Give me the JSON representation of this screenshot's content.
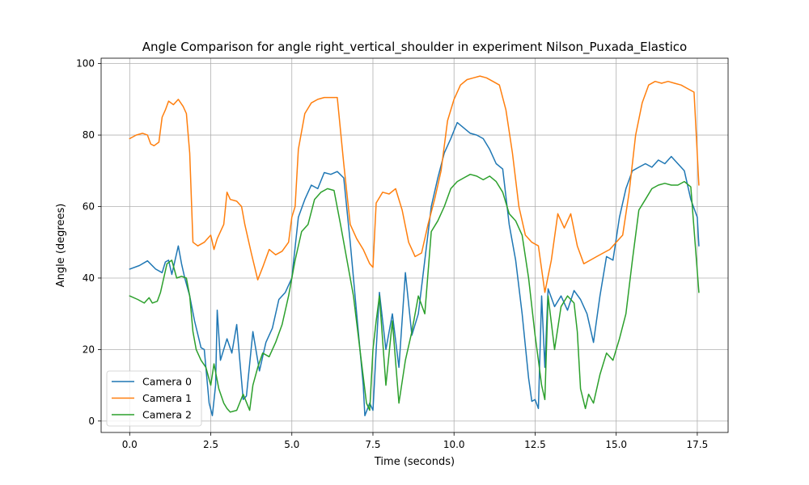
{
  "chart_data": {
    "type": "line",
    "title": "Angle Comparison for angle right_vertical_shoulder in experiment Nilson_Puxada_Elastico",
    "xlabel": "Time (seconds)",
    "ylabel": "Angle (degrees)",
    "xlim": [
      -0.88,
      18.45
    ],
    "ylim": [
      -3.2,
      101.5
    ],
    "xticks": [
      0,
      2.5,
      5,
      7.5,
      10,
      12.5,
      15,
      17.5
    ],
    "xtick_labels": [
      "0.0",
      "2.5",
      "5.0",
      "7.5",
      "10.0",
      "12.5",
      "15.0",
      "17.5"
    ],
    "yticks": [
      0,
      20,
      40,
      60,
      80,
      100
    ],
    "ytick_labels": [
      "0",
      "20",
      "40",
      "60",
      "80",
      "100"
    ],
    "grid": true,
    "legend_position": "lower-left",
    "series": [
      {
        "name": "Camera 0",
        "color": "#1f77b4",
        "x": [
          0.0,
          0.3,
          0.55,
          0.8,
          1.0,
          1.1,
          1.2,
          1.3,
          1.5,
          1.6,
          1.7,
          1.85,
          2.0,
          2.2,
          2.3,
          2.45,
          2.55,
          2.65,
          2.7,
          2.8,
          3.0,
          3.15,
          3.3,
          3.5,
          3.6,
          3.8,
          4.0,
          4.2,
          4.4,
          4.6,
          4.8,
          5.0,
          5.2,
          5.4,
          5.6,
          5.8,
          6.0,
          6.2,
          6.4,
          6.6,
          6.8,
          7.0,
          7.2,
          7.25,
          7.4,
          7.5,
          7.6,
          7.7,
          7.9,
          8.1,
          8.3,
          8.5,
          8.7,
          8.9,
          9.1,
          9.3,
          9.5,
          9.7,
          9.9,
          10.1,
          10.3,
          10.5,
          10.7,
          10.9,
          11.1,
          11.3,
          11.5,
          11.7,
          11.9,
          12.1,
          12.3,
          12.4,
          12.5,
          12.6,
          12.7,
          12.8,
          12.9,
          13.1,
          13.3,
          13.5,
          13.7,
          13.9,
          14.1,
          14.3,
          14.5,
          14.7,
          14.9,
          15.1,
          15.3,
          15.5,
          15.7,
          15.9,
          16.1,
          16.3,
          16.5,
          16.7,
          16.9,
          17.1,
          17.3,
          17.5,
          17.55
        ],
        "values": [
          42.5,
          43.5,
          44.8,
          42.5,
          41.5,
          44.5,
          45.0,
          41.0,
          49.0,
          44.0,
          40.0,
          35.0,
          28.0,
          20.5,
          20.0,
          5.0,
          1.5,
          10.0,
          31.0,
          17.0,
          23.0,
          19.0,
          27.0,
          6.0,
          7.0,
          25.0,
          14.0,
          22.0,
          26.0,
          34.0,
          36.0,
          40.0,
          57.0,
          62.0,
          66.0,
          65.0,
          69.5,
          69.0,
          69.8,
          68.0,
          50.0,
          30.0,
          10.0,
          1.5,
          5.0,
          3.0,
          20.0,
          36.0,
          20.0,
          30.0,
          15.0,
          41.5,
          24.0,
          30.0,
          45.0,
          60.0,
          68.0,
          75.0,
          79.0,
          83.5,
          82.0,
          80.5,
          80.0,
          79.0,
          76.0,
          72.0,
          70.5,
          55.0,
          45.0,
          30.0,
          12.0,
          5.5,
          6.0,
          3.5,
          35.0,
          15.0,
          37.0,
          32.0,
          35.0,
          31.0,
          36.5,
          34.0,
          30.0,
          22.0,
          35.0,
          46.0,
          45.0,
          57.0,
          65.0,
          70.0,
          71.0,
          72.0,
          71.0,
          73.0,
          72.0,
          74.0,
          72.0,
          70.0,
          62.0,
          57.0,
          49.0
        ]
      },
      {
        "name": "Camera 1",
        "color": "#ff7f0e",
        "x": [
          0.0,
          0.2,
          0.4,
          0.55,
          0.65,
          0.75,
          0.9,
          1.0,
          1.1,
          1.2,
          1.35,
          1.5,
          1.65,
          1.75,
          1.85,
          1.95,
          2.1,
          2.3,
          2.5,
          2.6,
          2.7,
          2.9,
          3.0,
          3.1,
          3.3,
          3.45,
          3.55,
          3.75,
          3.95,
          4.1,
          4.3,
          4.5,
          4.7,
          4.9,
          5.0,
          5.1,
          5.2,
          5.4,
          5.6,
          5.8,
          6.0,
          6.2,
          6.4,
          6.6,
          6.8,
          7.0,
          7.2,
          7.4,
          7.5,
          7.6,
          7.8,
          8.0,
          8.2,
          8.4,
          8.6,
          8.8,
          9.0,
          9.2,
          9.4,
          9.6,
          9.8,
          10.0,
          10.2,
          10.4,
          10.6,
          10.8,
          11.0,
          11.2,
          11.4,
          11.6,
          11.8,
          12.0,
          12.2,
          12.4,
          12.6,
          12.8,
          13.0,
          13.2,
          13.4,
          13.6,
          13.8,
          14.0,
          14.2,
          14.4,
          14.6,
          14.8,
          15.0,
          15.2,
          15.4,
          15.6,
          15.8,
          16.0,
          16.2,
          16.4,
          16.6,
          16.8,
          17.0,
          17.2,
          17.4,
          17.55
        ],
        "values": [
          79.0,
          80.0,
          80.5,
          80.0,
          77.5,
          77.0,
          78.0,
          85.0,
          87.0,
          89.5,
          88.5,
          90.0,
          88.0,
          86.0,
          75.0,
          50.0,
          49.0,
          50.0,
          52.0,
          48.0,
          51.0,
          55.0,
          64.0,
          62.0,
          61.5,
          60.0,
          55.0,
          47.0,
          39.5,
          43.0,
          48.0,
          46.5,
          47.5,
          50.0,
          57.0,
          60.0,
          76.0,
          86.0,
          89.0,
          90.0,
          90.5,
          90.5,
          90.5,
          72.0,
          55.0,
          51.0,
          48.0,
          44.0,
          43.0,
          61.0,
          64.0,
          63.5,
          65.0,
          59.0,
          50.0,
          46.0,
          47.0,
          55.0,
          62.0,
          70.0,
          84.0,
          90.0,
          94.0,
          95.5,
          96.0,
          96.5,
          96.0,
          95.0,
          94.0,
          87.0,
          75.0,
          60.0,
          52.0,
          50.0,
          49.0,
          36.0,
          45.0,
          58.0,
          54.0,
          58.0,
          49.0,
          44.0,
          45.0,
          46.0,
          47.0,
          48.0,
          50.0,
          52.0,
          64.0,
          80.0,
          89.0,
          94.0,
          95.0,
          94.5,
          95.0,
          94.5,
          94.0,
          93.0,
          92.0,
          66.0
        ]
      },
      {
        "name": "Camera 2",
        "color": "#2ca02c",
        "x": [
          0.0,
          0.25,
          0.45,
          0.6,
          0.7,
          0.85,
          0.95,
          1.05,
          1.15,
          1.3,
          1.45,
          1.6,
          1.75,
          1.85,
          1.95,
          2.05,
          2.2,
          2.35,
          2.5,
          2.6,
          2.75,
          2.9,
          3.0,
          3.1,
          3.3,
          3.5,
          3.7,
          3.8,
          3.95,
          4.1,
          4.3,
          4.5,
          4.7,
          4.9,
          5.1,
          5.3,
          5.5,
          5.7,
          5.9,
          6.1,
          6.3,
          6.5,
          6.7,
          6.9,
          7.1,
          7.3,
          7.4,
          7.5,
          7.6,
          7.7,
          7.9,
          8.1,
          8.3,
          8.5,
          8.7,
          8.9,
          9.1,
          9.3,
          9.5,
          9.7,
          9.9,
          10.1,
          10.3,
          10.5,
          10.7,
          10.9,
          11.1,
          11.3,
          11.5,
          11.7,
          11.9,
          12.1,
          12.3,
          12.5,
          12.6,
          12.7,
          12.8,
          12.9,
          13.1,
          13.3,
          13.5,
          13.7,
          13.8,
          13.9,
          14.05,
          14.15,
          14.3,
          14.5,
          14.7,
          14.9,
          15.1,
          15.3,
          15.5,
          15.7,
          15.9,
          16.1,
          16.3,
          16.5,
          16.7,
          16.9,
          17.1,
          17.3,
          17.55
        ],
        "values": [
          35.0,
          34.0,
          33.0,
          34.5,
          33.0,
          33.5,
          36.0,
          40.0,
          44.0,
          45.0,
          40.0,
          40.5,
          40.0,
          35.0,
          25.0,
          20.0,
          17.0,
          15.0,
          10.0,
          16.0,
          9.0,
          5.0,
          3.5,
          2.5,
          3.0,
          7.5,
          3.0,
          10.0,
          15.0,
          19.0,
          18.0,
          22.0,
          27.0,
          35.0,
          45.0,
          53.0,
          55.0,
          62.0,
          64.0,
          65.0,
          64.5,
          55.0,
          45.0,
          35.0,
          20.0,
          5.0,
          3.0,
          20.0,
          28.0,
          35.0,
          10.0,
          28.0,
          5.0,
          17.0,
          25.0,
          35.0,
          30.0,
          53.0,
          56.0,
          60.0,
          65.0,
          67.0,
          68.0,
          69.0,
          68.5,
          67.5,
          68.5,
          67.0,
          64.0,
          58.0,
          56.0,
          52.0,
          40.0,
          24.0,
          17.0,
          10.0,
          6.0,
          35.0,
          20.0,
          32.0,
          35.0,
          33.0,
          25.0,
          9.0,
          3.5,
          7.5,
          5.0,
          13.0,
          19.0,
          17.0,
          23.0,
          30.0,
          45.0,
          59.0,
          62.0,
          65.0,
          66.0,
          66.5,
          66.0,
          66.0,
          67.0,
          65.5,
          36.0
        ]
      }
    ]
  }
}
